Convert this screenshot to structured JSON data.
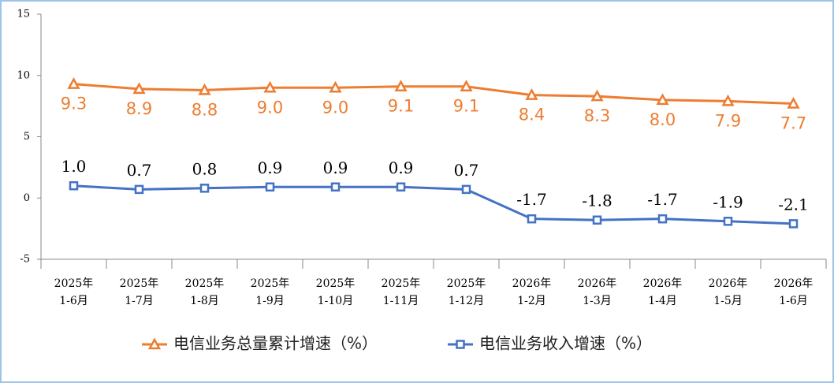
{
  "chart_data": {
    "type": "line",
    "categories": [
      [
        "2025年",
        "1-6月"
      ],
      [
        "2025年",
        "1-7月"
      ],
      [
        "2025年",
        "1-8月"
      ],
      [
        "2025年",
        "1-9月"
      ],
      [
        "2025年",
        "1-10月"
      ],
      [
        "2025年",
        "1-11月"
      ],
      [
        "2025年",
        "1-12月"
      ],
      [
        "2026年",
        "1-2月"
      ],
      [
        "2026年",
        "1-3月"
      ],
      [
        "2026年",
        "1-4月"
      ],
      [
        "2026年",
        "1-5月"
      ],
      [
        "2026年",
        "1-6月"
      ]
    ],
    "series": [
      {
        "name": "电信业务总量累计增速（%）",
        "color": "#ED7D31",
        "marker": "triangle",
        "values": [
          9.3,
          8.9,
          8.8,
          9.0,
          9.0,
          9.1,
          9.1,
          8.4,
          8.3,
          8.0,
          7.9,
          7.7
        ],
        "value_labels": [
          "9.3",
          "8.9",
          "8.8",
          "9.0",
          "9.0",
          "9.1",
          "9.1",
          "8.4",
          "8.3",
          "8.0",
          "7.9",
          "7.7"
        ]
      },
      {
        "name": "电信业务收入增速（%）",
        "color": "#4472C4",
        "marker": "square",
        "values": [
          1.0,
          0.7,
          0.8,
          0.9,
          0.9,
          0.9,
          0.7,
          -1.7,
          -1.8,
          -1.7,
          -1.9,
          -2.1
        ],
        "value_labels": [
          "1.0",
          "0.7",
          "0.8",
          "0.9",
          "0.9",
          "0.9",
          "0.7",
          "-1.7",
          "-1.8",
          "-1.7",
          "-1.9",
          "-2.1"
        ]
      }
    ],
    "ylim": [
      -5,
      15
    ],
    "yticks": [
      15,
      10,
      5,
      0,
      -5
    ],
    "grid": false,
    "legend": "bottom"
  }
}
